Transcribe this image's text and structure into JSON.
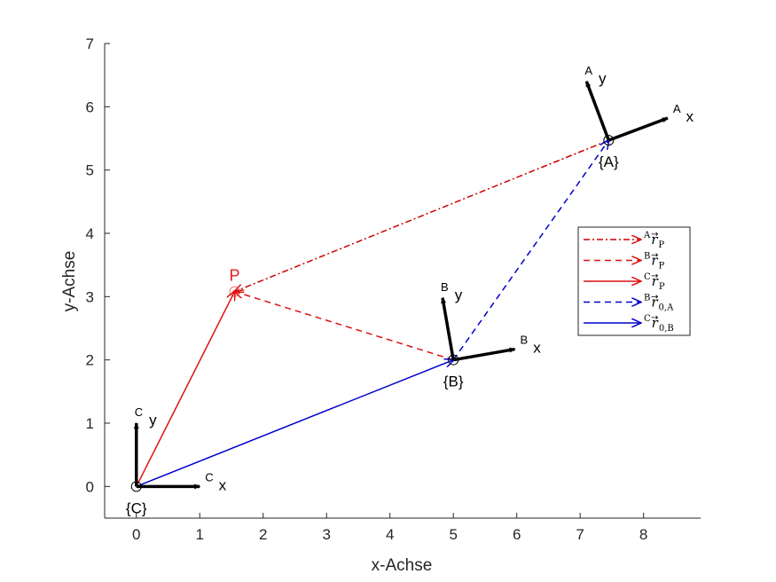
{
  "chart_data": {
    "type": "vector-plot",
    "xlabel": "x-Achse",
    "ylabel": "y-Achse",
    "xlim": [
      -0.5,
      8.9
    ],
    "ylim": [
      -0.5,
      7
    ],
    "xticks": [
      "0",
      "1",
      "2",
      "3",
      "4",
      "5",
      "6",
      "7",
      "8"
    ],
    "yticks": [
      "0",
      "1",
      "2",
      "3",
      "4",
      "5",
      "6",
      "7"
    ],
    "frames": [
      {
        "name": "{C}",
        "prefix": "C",
        "origin": [
          0,
          0
        ],
        "x_tip": [
          1,
          0
        ],
        "y_tip": [
          0,
          1
        ],
        "x_label": "x",
        "y_label": "y"
      },
      {
        "name": "{B}",
        "prefix": "B",
        "origin": [
          5,
          2
        ],
        "x_tip": [
          5.97,
          2.17
        ],
        "y_tip": [
          4.83,
          2.98
        ],
        "x_label": "x",
        "y_label": "y"
      },
      {
        "name": "{A}",
        "prefix": "A",
        "origin": [
          7.45,
          5.47
        ],
        "x_tip": [
          8.38,
          5.82
        ],
        "y_tip": [
          7.1,
          6.4
        ],
        "x_label": "x",
        "y_label": "y"
      }
    ],
    "point": {
      "name": "P",
      "x": 1.55,
      "y": 3.08,
      "color": "#e31a1c"
    },
    "vectors": [
      {
        "id": "A_rP",
        "from": [
          7.45,
          5.47
        ],
        "to": [
          1.55,
          3.08
        ],
        "color": "#cc0000",
        "style": "dashdot"
      },
      {
        "id": "B_rP",
        "from": [
          5,
          2
        ],
        "to": [
          1.55,
          3.08
        ],
        "color": "#dd1111",
        "style": "dashed"
      },
      {
        "id": "C_rP",
        "from": [
          0,
          0
        ],
        "to": [
          1.55,
          3.08
        ],
        "color": "#dd1111",
        "style": "solid"
      },
      {
        "id": "B_r0A",
        "from": [
          5,
          2
        ],
        "to": [
          7.45,
          5.47
        ],
        "color": "#0000cc",
        "style": "dashed"
      },
      {
        "id": "C_r0B",
        "from": [
          0,
          0
        ],
        "to": [
          5,
          2
        ],
        "color": "#0000cc",
        "style": "solid"
      }
    ],
    "legend": {
      "placement": "right-middle",
      "entries": [
        {
          "sup": "A",
          "sym": "r",
          "sub": "P",
          "color": "#cc0000",
          "style": "dashdot"
        },
        {
          "sup": "B",
          "sym": "r",
          "sub": "P",
          "color": "#dd1111",
          "style": "dashed"
        },
        {
          "sup": "C",
          "sym": "r",
          "sub": "P",
          "color": "#dd1111",
          "style": "solid"
        },
        {
          "sup": "B",
          "sym": "r",
          "sub": "0,A",
          "color": "#0000cc",
          "style": "dashed"
        },
        {
          "sup": "C",
          "sym": "r",
          "sub": "0,B",
          "color": "#0000cc",
          "style": "solid"
        }
      ]
    }
  }
}
